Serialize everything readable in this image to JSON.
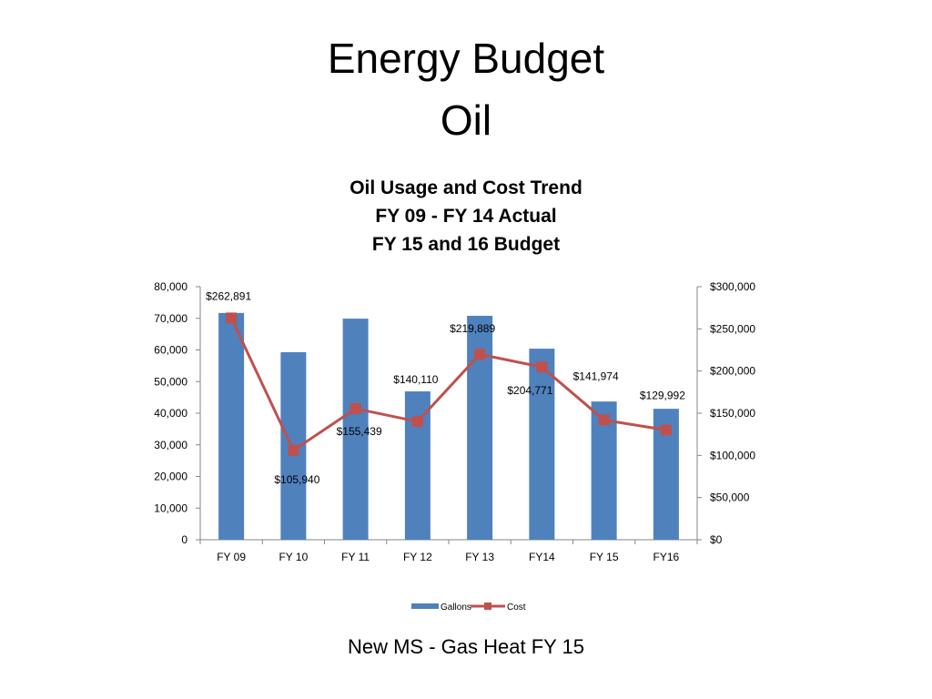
{
  "slide": {
    "title_line1": "Energy Budget",
    "title_line2": "Oil",
    "footer": "New MS  -  Gas Heat FY 15"
  },
  "chart_data": {
    "type": "bar+line",
    "title": [
      "Oil Usage and Cost Trend",
      "FY 09 - FY 14 Actual",
      "FY 15 and 16 Budget"
    ],
    "categories": [
      "FY 09",
      "FY 10",
      "FY 11",
      "FY 12",
      "FY 13",
      "FY14",
      "FY 15",
      "FY16"
    ],
    "series": [
      {
        "name": "Gallons",
        "type": "bar",
        "axis": "left",
        "color": "#4F81BD",
        "values": [
          71700,
          59300,
          69900,
          46900,
          70800,
          60400,
          43700,
          41400
        ]
      },
      {
        "name": "Cost",
        "type": "line",
        "axis": "right",
        "color": "#C0504D",
        "values": [
          262891,
          105940,
          155439,
          140110,
          219889,
          204771,
          141974,
          129992
        ],
        "labels": [
          "$262,891",
          "$105,940",
          "$155,439",
          "$140,110",
          "$219,889",
          "$204,771",
          "$141,974",
          "$129,992"
        ]
      }
    ],
    "left_axis": {
      "range": [
        0,
        80000
      ],
      "ticks": [
        "0",
        "10,000",
        "20,000",
        "30,000",
        "40,000",
        "50,000",
        "60,000",
        "70,000",
        "80,000"
      ]
    },
    "right_axis": {
      "range": [
        0,
        300000
      ],
      "ticks": [
        "$0",
        "$50,000",
        "$100,000",
        "$150,000",
        "$200,000",
        "$250,000",
        "$300,000"
      ]
    },
    "grid": false,
    "legend": "bottom"
  }
}
